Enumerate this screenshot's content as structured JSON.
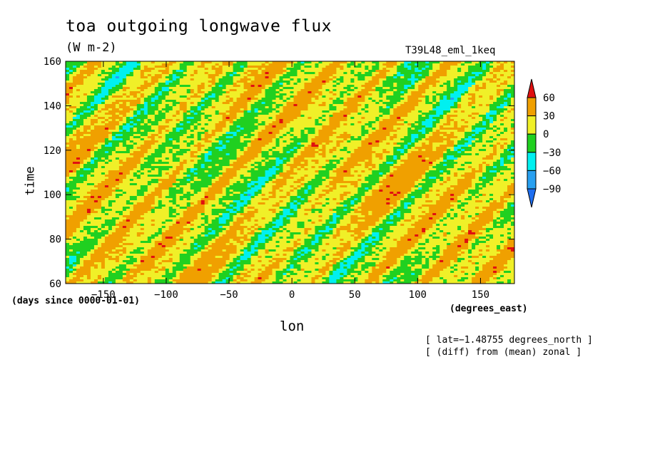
{
  "chart_data": {
    "type": "heatmap",
    "title": "toa outgoing longwave flux",
    "units": "(W m-2)",
    "dataset": "T39L48_eml_1keq",
    "xlabel": "lon",
    "ylabel": "time",
    "x_units": "(degrees_east)",
    "y_units": "(days since 0000-01-01)",
    "xlim": [
      -180,
      177
    ],
    "ylim": [
      60,
      160
    ],
    "x_ticks": [
      -150,
      -100,
      -50,
      0,
      50,
      100,
      150
    ],
    "x_tick_labels": [
      "−150",
      "−100",
      "−50",
      "0",
      "50",
      "100",
      "150"
    ],
    "y_ticks": [
      60,
      80,
      100,
      120,
      140,
      160
    ],
    "y_tick_labels": [
      "60",
      "80",
      "100",
      "120",
      "140",
      "160"
    ],
    "notes": [
      "[ lat=−1.48755 degrees_north ]",
      "[ (diff) from (mean) zonal ]"
    ],
    "colorbar": {
      "levels": [
        -90,
        -60,
        -30,
        0,
        30,
        60
      ],
      "labels": [
        "60",
        "30",
        "0",
        "−30",
        "−60",
        "−90"
      ],
      "colors": [
        "#1e6ef0",
        "#28a0f0",
        "#00f0f0",
        "#20d020",
        "#f0f028",
        "#f0a000",
        "#e01010"
      ],
      "extend": "both"
    },
    "field_description_pattern": {
      "dominant_ranges": [
        "0 to 30",
        "-30 to 0"
      ],
      "propagation": "westward-tilted bands"
    }
  }
}
